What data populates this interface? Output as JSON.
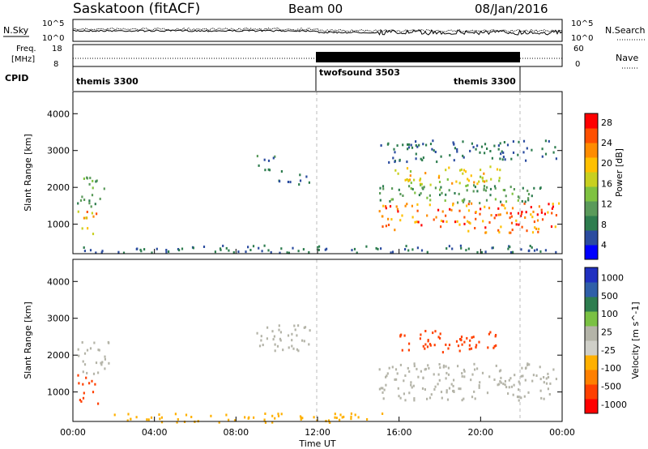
{
  "header": {
    "station": "Saskatoon (fitACF)",
    "beam": "Beam 00",
    "date": "08/Jan/2016"
  },
  "noise_panel": {
    "left_label": "N.Sky",
    "left_ticks": [
      "10^5",
      "10^0"
    ],
    "right_ticks": [
      "10^5",
      "10^0"
    ],
    "right_label": "N.Search"
  },
  "freq_panel": {
    "left_label_1": "Freq.",
    "left_label_2": "[MHz]",
    "left_ticks": [
      "18",
      "8"
    ],
    "right_ticks": [
      "60",
      "0"
    ],
    "right_label": "Nave"
  },
  "cpid": {
    "label": "CPID",
    "segments": [
      "themis 3300",
      "twofsound 3503",
      "themis 3300"
    ]
  },
  "colors": {
    "power": [
      "#0000ff",
      "#2b4c9f",
      "#2e7d4f",
      "#5a9a5a",
      "#7fc241",
      "#c8d020",
      "#ffc000",
      "#ff8c00",
      "#ff5000",
      "#ff0000"
    ],
    "velocity": [
      "#2030c0",
      "#2f5fa8",
      "#2e7d4f",
      "#7ac143",
      "#b4b4a8",
      "#cfcfc8",
      "#ffb000",
      "#ff8000",
      "#ff4000",
      "#ff0000"
    ]
  },
  "chart_data": [
    {
      "type": "heatmap",
      "title": "Power",
      "ylabel": "Slant Range [km]",
      "xlabel": "Time UT",
      "x_ticks": [
        "00:00",
        "04:00",
        "08:00",
        "12:00",
        "16:00",
        "20:00",
        "00:00"
      ],
      "y_ticks": [
        "1000",
        "2000",
        "3000",
        "4000"
      ],
      "ylim": [
        200,
        4600
      ],
      "xlim_hours": [
        0,
        24
      ],
      "colorbar_label": "Power [dB]",
      "colorbar_ticks": [
        "4",
        "8",
        "12",
        "16",
        "20",
        "24",
        "28"
      ],
      "clim": [
        0,
        30
      ],
      "regions": [
        {
          "t": [
            0.2,
            1.2
          ],
          "r": [
            700,
            1500
          ],
          "v": 20
        },
        {
          "t": [
            0.2,
            1.5
          ],
          "r": [
            1500,
            2300
          ],
          "v": 10
        },
        {
          "t": [
            9.0,
            10.0
          ],
          "r": [
            2500,
            2900
          ],
          "v": 8
        },
        {
          "t": [
            10.0,
            11.6
          ],
          "r": [
            2100,
            2500
          ],
          "v": 6
        },
        {
          "t": [
            15.0,
            23.8
          ],
          "r": [
            800,
            1600
          ],
          "v": 24
        },
        {
          "t": [
            15.5,
            21.0
          ],
          "r": [
            2100,
            2600
          ],
          "v": 18
        },
        {
          "t": [
            15.0,
            23.0
          ],
          "r": [
            1600,
            2100
          ],
          "v": 10
        },
        {
          "t": [
            15.0,
            23.8
          ],
          "r": [
            2700,
            3300
          ],
          "v": 6
        },
        {
          "t": [
            0.5,
            23.8
          ],
          "r": [
            250,
            450
          ],
          "v": 6
        }
      ]
    },
    {
      "type": "heatmap",
      "title": "Velocity",
      "ylabel": "Slant Range [km]",
      "xlabel": "Time UT",
      "x_ticks": [
        "00:00",
        "04:00",
        "08:00",
        "12:00",
        "16:00",
        "20:00",
        "00:00"
      ],
      "y_ticks": [
        "1000",
        "2000",
        "3000",
        "4000"
      ],
      "ylim": [
        200,
        4600
      ],
      "xlim_hours": [
        0,
        24
      ],
      "colorbar_label": "Velocity [m s^-1]",
      "colorbar_ticks": [
        "1000",
        "500",
        "100",
        "25",
        "-25",
        "-100",
        "-500",
        "-1000"
      ],
      "regions": [
        {
          "t": [
            0.2,
            1.2
          ],
          "r": [
            700,
            1500
          ],
          "v": -200
        },
        {
          "t": [
            0.2,
            1.8
          ],
          "r": [
            1500,
            2400
          ],
          "v": 0
        },
        {
          "t": [
            9.0,
            11.6
          ],
          "r": [
            2100,
            2900
          ],
          "v": 0
        },
        {
          "t": [
            15.0,
            23.8
          ],
          "r": [
            800,
            1800
          ],
          "v": 0
        },
        {
          "t": [
            16.0,
            21.0
          ],
          "r": [
            2100,
            2700
          ],
          "v": -300
        },
        {
          "t": [
            2.0,
            15.5
          ],
          "r": [
            200,
            450
          ],
          "v": -40
        }
      ]
    }
  ]
}
